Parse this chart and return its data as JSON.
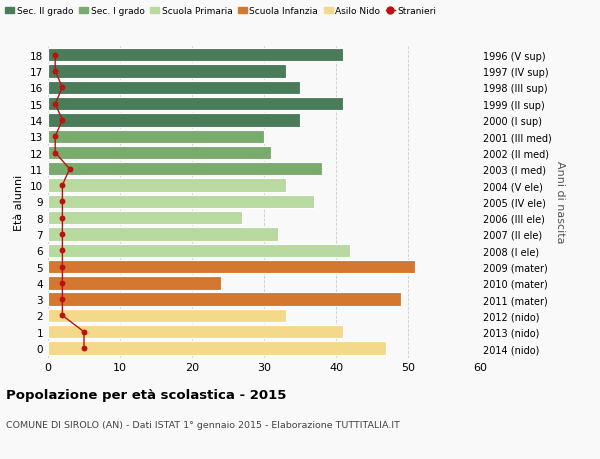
{
  "ages": [
    18,
    17,
    16,
    15,
    14,
    13,
    12,
    11,
    10,
    9,
    8,
    7,
    6,
    5,
    4,
    3,
    2,
    1,
    0
  ],
  "values": [
    41,
    33,
    35,
    41,
    35,
    30,
    31,
    38,
    33,
    37,
    27,
    32,
    42,
    51,
    24,
    49,
    33,
    41,
    47
  ],
  "stranieri": [
    1,
    1,
    2,
    1,
    2,
    1,
    1,
    3,
    2,
    2,
    2,
    2,
    2,
    2,
    2,
    2,
    2,
    5,
    5
  ],
  "right_labels": [
    "1996 (V sup)",
    "1997 (IV sup)",
    "1998 (III sup)",
    "1999 (II sup)",
    "2000 (I sup)",
    "2001 (III med)",
    "2002 (II med)",
    "2003 (I med)",
    "2004 (V ele)",
    "2005 (IV ele)",
    "2006 (III ele)",
    "2007 (II ele)",
    "2008 (I ele)",
    "2009 (mater)",
    "2010 (mater)",
    "2011 (mater)",
    "2012 (nido)",
    "2013 (nido)",
    "2014 (nido)"
  ],
  "bar_colors": [
    "#4a7c59",
    "#4a7c59",
    "#4a7c59",
    "#4a7c59",
    "#4a7c59",
    "#7aab6e",
    "#7aab6e",
    "#7aab6e",
    "#b8d9a0",
    "#b8d9a0",
    "#b8d9a0",
    "#b8d9a0",
    "#b8d9a0",
    "#d47830",
    "#d47830",
    "#d47830",
    "#f5d98b",
    "#f5d98b",
    "#f5d98b"
  ],
  "legend_colors": {
    "Sec. II grado": "#4a7c59",
    "Sec. I grado": "#7aab6e",
    "Scuola Primaria": "#b8d9a0",
    "Scuola Infanzia": "#d47830",
    "Asilo Nido": "#f5d98b",
    "Stranieri": "#bb1111"
  },
  "stranieri_color": "#bb1111",
  "title_bold": "Popolazione per età scolastica - 2015",
  "subtitle": "COMUNE DI SIROLO (AN) - Dati ISTAT 1° gennaio 2015 - Elaborazione TUTTITALIA.IT",
  "ylabel": "Età alunni",
  "ylabel2": "Anni di nascita",
  "xlim": [
    0,
    60
  ],
  "xticks": [
    0,
    10,
    20,
    30,
    40,
    50,
    60
  ],
  "bg_color": "#f9f9f9",
  "grid_color": "#cccccc",
  "bar_height": 0.82
}
